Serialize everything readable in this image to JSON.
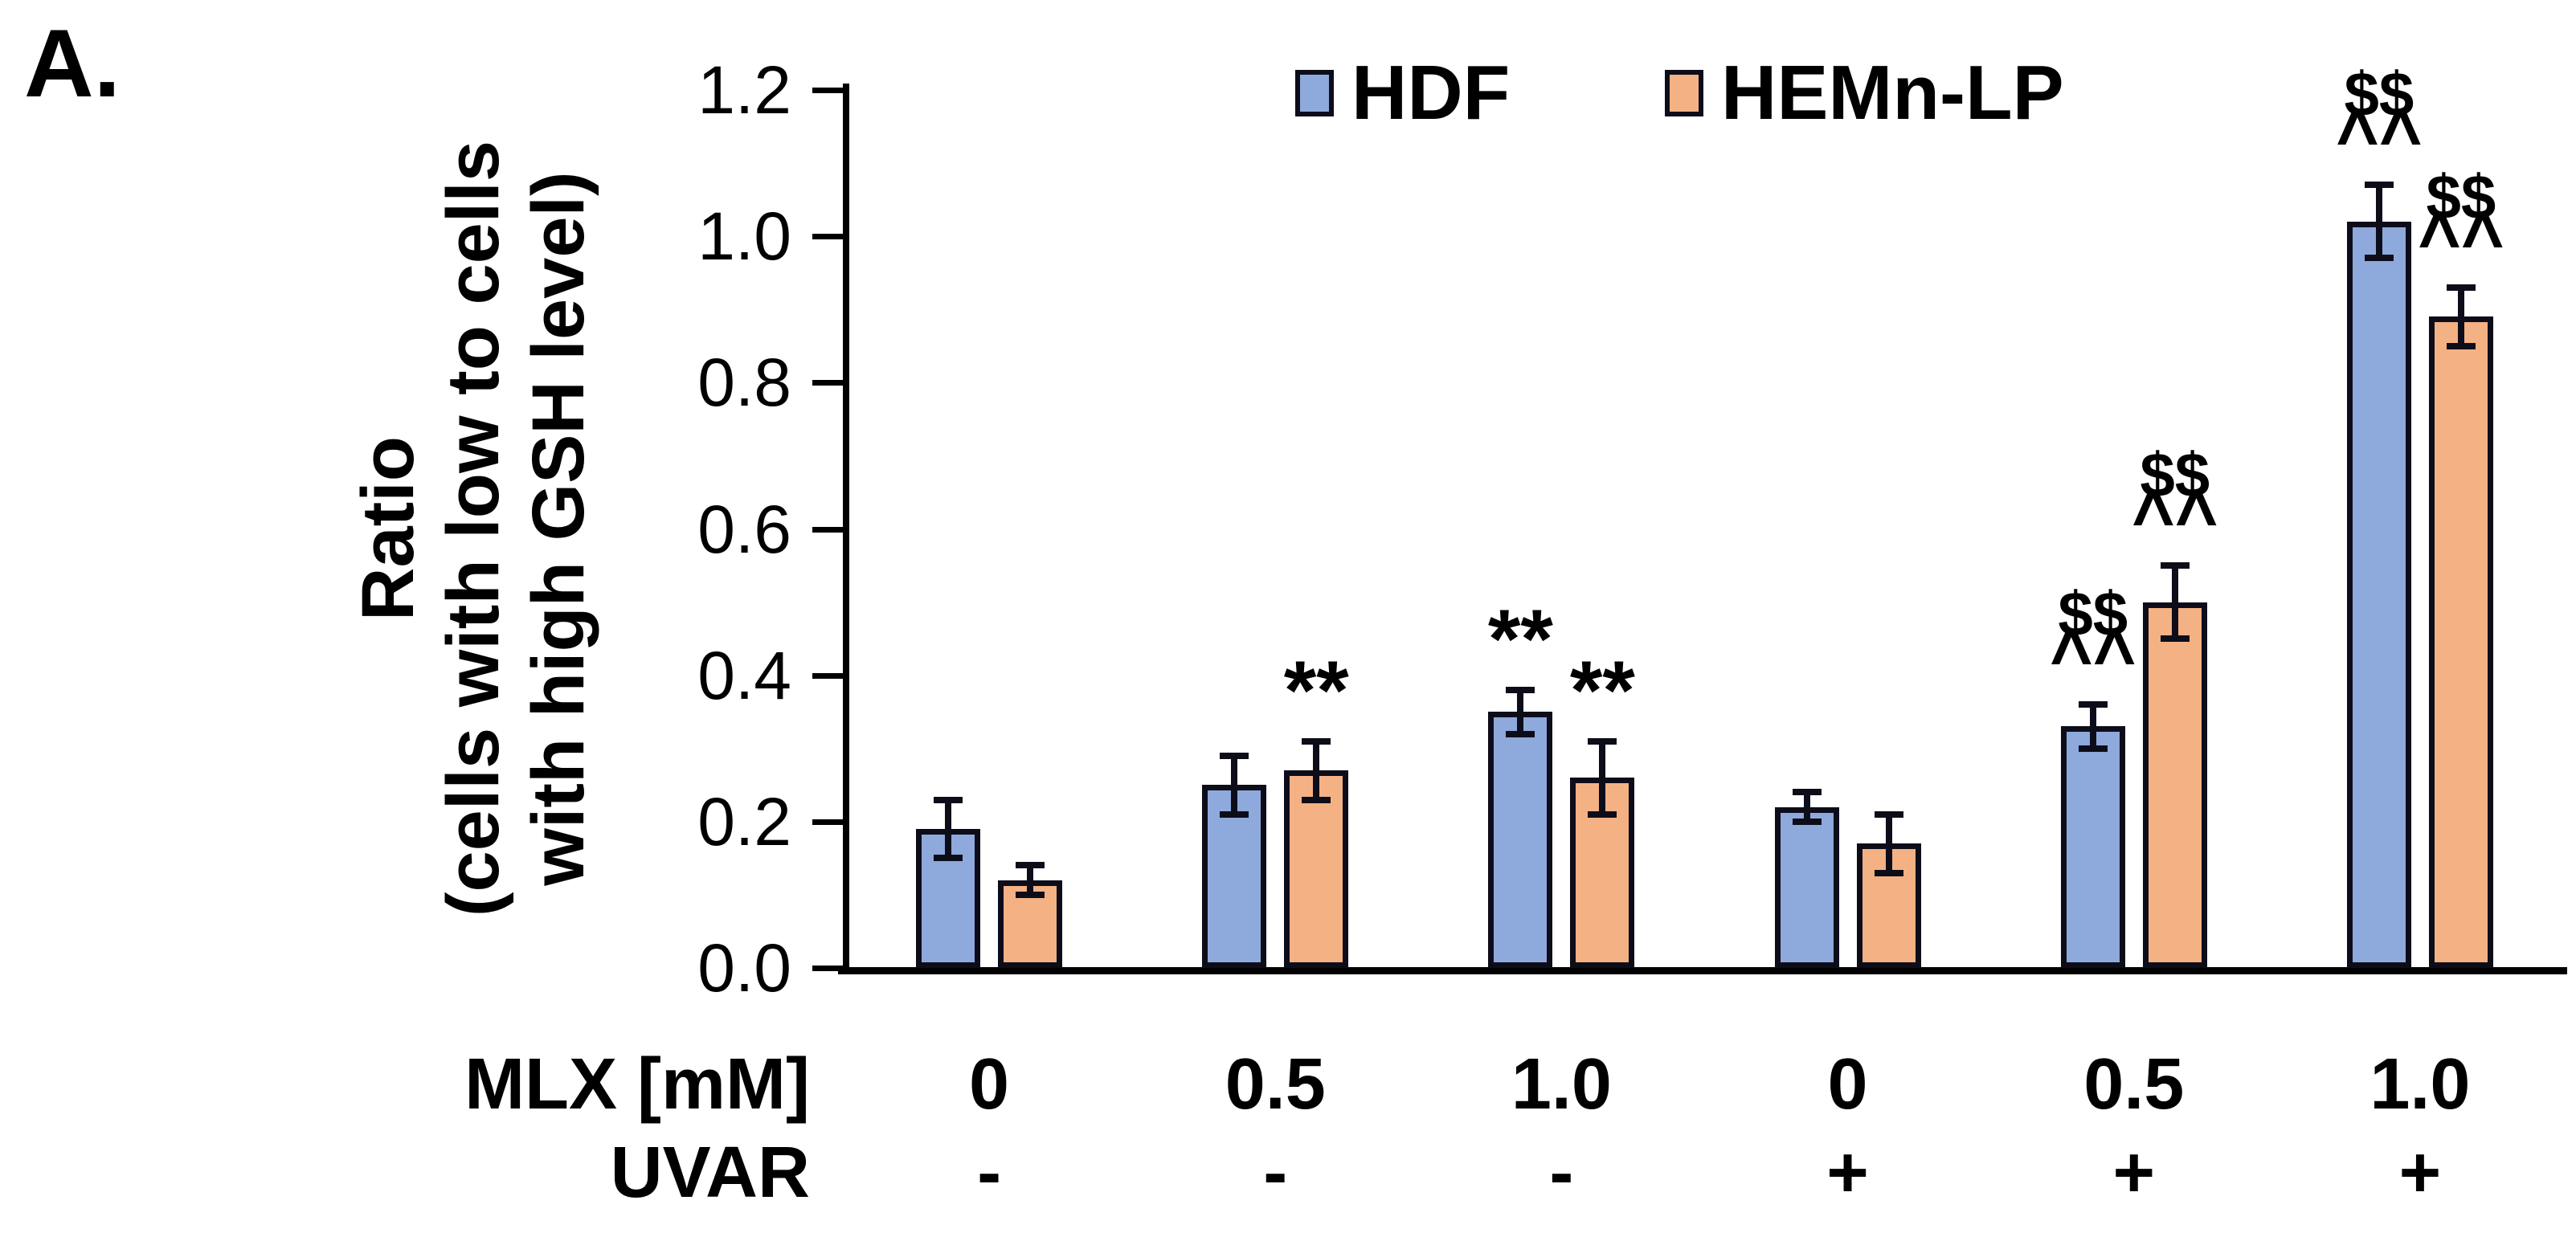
{
  "panel_label": "A.",
  "legend": [
    {
      "label": "HDF",
      "color": "#8EA9DB"
    },
    {
      "label": "HEMn-LP",
      "color": "#F4B183"
    }
  ],
  "colors": {
    "outline": "#0D0D1A",
    "axis": "#000000"
  },
  "chart_data": {
    "type": "bar",
    "title": "",
    "ylabel_lines": [
      "Ratio",
      "(cells with low to cells",
      "with high GSH level)"
    ],
    "ylim": [
      0,
      1.2
    ],
    "ytick_labels": [
      "0.0",
      "0.2",
      "0.4",
      "0.6",
      "0.8",
      "1.0",
      "1.2"
    ],
    "grid": false,
    "legend_position": "top",
    "x_axis_rows": [
      {
        "label": "MLX [mM]",
        "values": [
          "0",
          "0.5",
          "1.0",
          "0",
          "0.5",
          "1.0"
        ]
      },
      {
        "label": "UVAR",
        "values": [
          "-",
          "-",
          "-",
          "+",
          "+",
          "+"
        ]
      }
    ],
    "series": [
      {
        "name": "HDF",
        "color": "#8EA9DB",
        "values": [
          0.19,
          0.25,
          0.35,
          0.22,
          0.33,
          1.02
        ],
        "errors": [
          0.04,
          0.04,
          0.03,
          0.02,
          0.03,
          0.05
        ],
        "annotations": [
          [],
          [],
          [
            "**"
          ],
          [],
          [
            "$$",
            "^^"
          ],
          [
            "$$",
            "^^"
          ]
        ]
      },
      {
        "name": "HEMn-LP",
        "color": "#F4B183",
        "values": [
          0.12,
          0.27,
          0.26,
          0.17,
          0.5,
          0.89
        ],
        "errors": [
          0.02,
          0.04,
          0.05,
          0.04,
          0.05,
          0.04
        ],
        "annotations": [
          [],
          [
            "**"
          ],
          [
            "**"
          ],
          [],
          [
            "$$",
            "^^"
          ],
          [
            "$$",
            "^^"
          ]
        ]
      }
    ]
  }
}
